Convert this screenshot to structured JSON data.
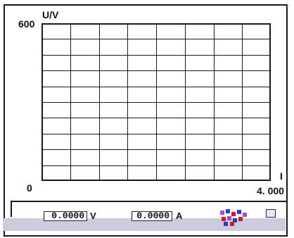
{
  "graph": {
    "y_axis": {
      "label": "U/V",
      "max": "600",
      "min": "0"
    },
    "x_axis": {
      "label": "I",
      "max": "4. 000"
    },
    "grid": {
      "columns": 8,
      "rows": 10,
      "line_color": "#1a1a1a"
    }
  },
  "readouts": {
    "voltage": {
      "value": "0.0000",
      "unit": "V"
    },
    "current": {
      "value": "0.0000",
      "unit": "A"
    }
  },
  "colors": {
    "bottom_band": "#c9cddd",
    "icon_red": "#d6192a",
    "icon_blue": "#2b3fc4",
    "icon_purple": "#a050c8"
  },
  "icons": [
    "toolbar-icon",
    "window-button-icon",
    "corner-mark-icon"
  ]
}
